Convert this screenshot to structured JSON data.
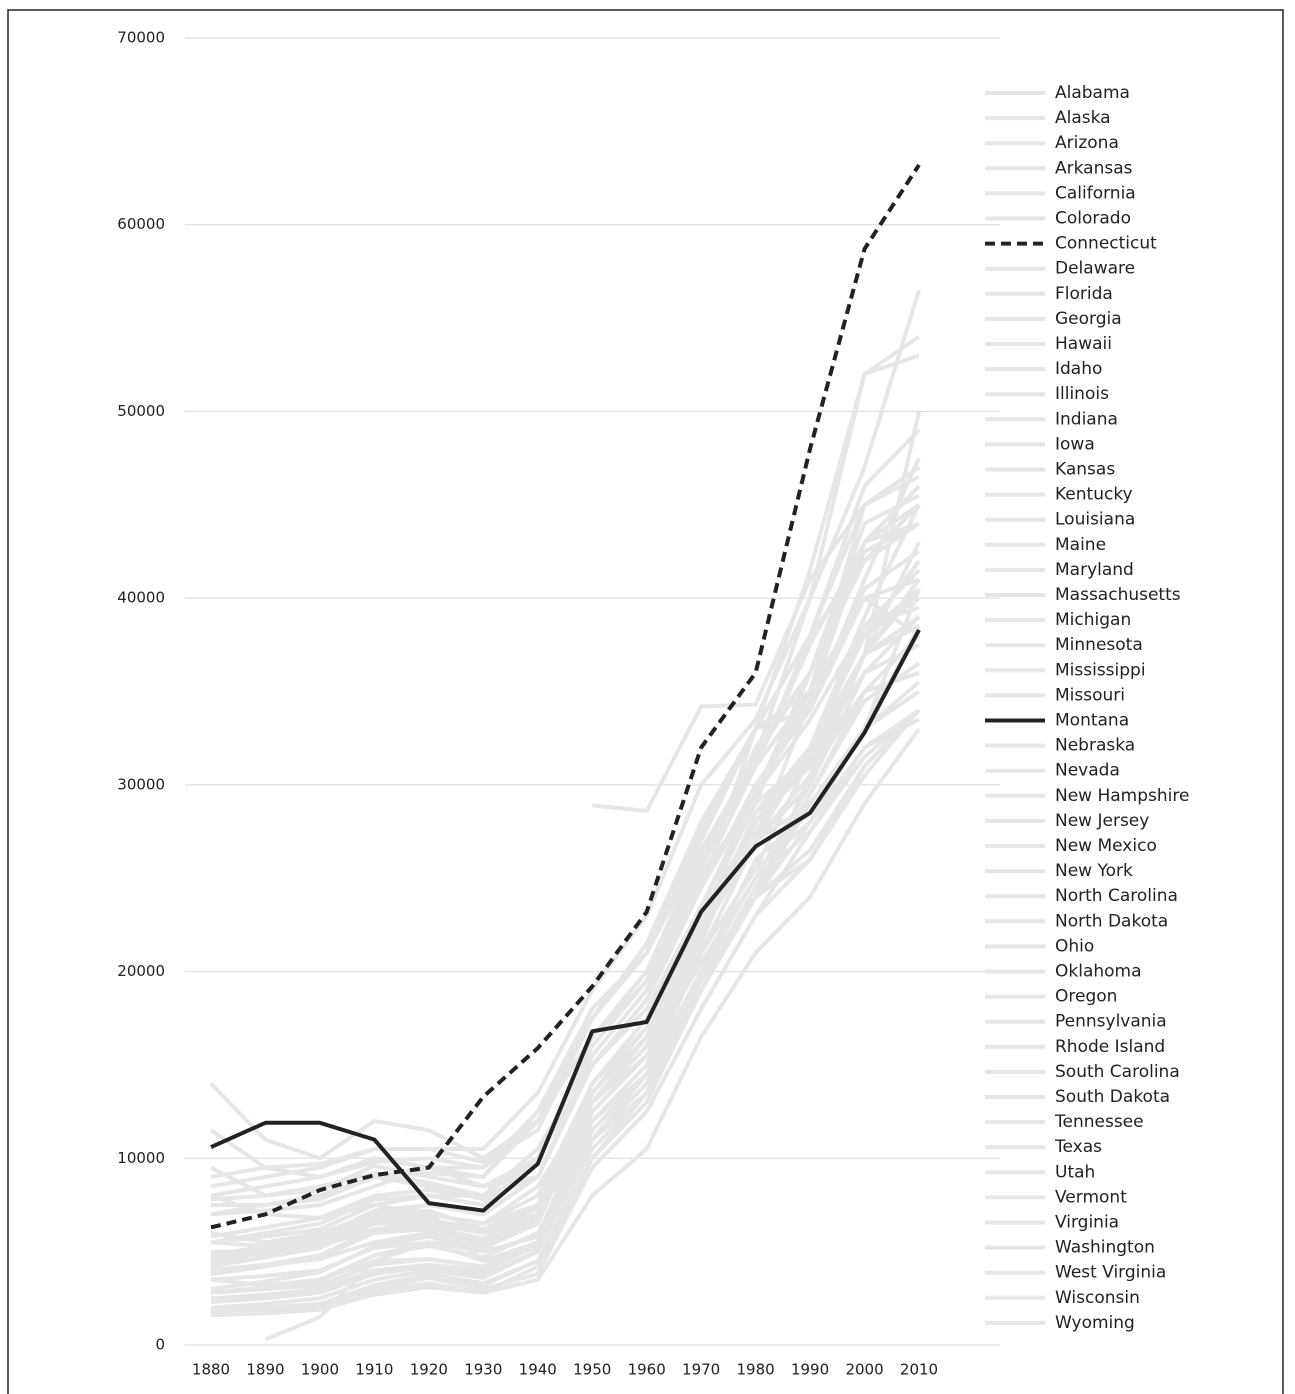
{
  "chart_data": {
    "type": "line",
    "x": [
      1880,
      1890,
      1900,
      1910,
      1920,
      1930,
      1940,
      1950,
      1960,
      1970,
      1980,
      1990,
      2000,
      2010
    ],
    "ylim": [
      0,
      70000
    ],
    "yticks": [
      0,
      10000,
      20000,
      30000,
      40000,
      50000,
      60000,
      70000
    ],
    "grid": true,
    "series": [
      {
        "name": "Alabama",
        "color": "#e6e6e6",
        "values": [
          1900,
          2000,
          2200,
          3200,
          3800,
          3300,
          4500,
          10000,
          13000,
          19000,
          24000,
          29000,
          33000,
          35500
        ]
      },
      {
        "name": "Alaska",
        "color": "#e6e6e6",
        "values": [
          null,
          null,
          null,
          null,
          null,
          null,
          null,
          28900,
          28600,
          34200,
          34300,
          41000,
          45000,
          47000
        ]
      },
      {
        "name": "Arizona",
        "color": "#e6e6e6",
        "values": [
          8000,
          7000,
          6800,
          7500,
          7000,
          6500,
          7500,
          14000,
          17500,
          23000,
          28000,
          31000,
          35000,
          36000
        ]
      },
      {
        "name": "Arkansas",
        "color": "#e6e6e6",
        "values": [
          1700,
          1900,
          2100,
          3000,
          3600,
          3000,
          3800,
          9500,
          12500,
          18000,
          23000,
          26000,
          31000,
          34000
        ]
      },
      {
        "name": "California",
        "color": "#e6e6e6",
        "values": [
          9000,
          9500,
          9700,
          10500,
          10500,
          9800,
          11500,
          17500,
          21000,
          27500,
          33000,
          38000,
          45000,
          47000
        ]
      },
      {
        "name": "Colorado",
        "color": "#e6e6e6",
        "values": [
          9500,
          8000,
          8500,
          9200,
          8700,
          8000,
          9000,
          15500,
          19000,
          25000,
          31000,
          35000,
          45000,
          46500
        ]
      },
      {
        "name": "Connecticut",
        "color": "#222222",
        "dash": true,
        "values": [
          6300,
          7000,
          8300,
          9100,
          9500,
          13300,
          15900,
          19200,
          23200,
          32000,
          36000,
          48000,
          58700,
          63200
        ]
      },
      {
        "name": "Delaware",
        "color": "#e6e6e6",
        "values": [
          7000,
          7200,
          7500,
          8500,
          9500,
          9000,
          12500,
          18000,
          21000,
          26500,
          31000,
          37500,
          43000,
          44000
        ]
      },
      {
        "name": "Florida",
        "color": "#e6e6e6",
        "values": [
          3500,
          3700,
          4000,
          5200,
          5500,
          5000,
          7500,
          13000,
          16000,
          22000,
          27000,
          32000,
          38000,
          40000
        ]
      },
      {
        "name": "Georgia",
        "color": "#e6e6e6",
        "values": [
          2000,
          2200,
          2500,
          3500,
          4000,
          3600,
          5000,
          11000,
          14000,
          20000,
          25000,
          30000,
          36000,
          37500
        ]
      },
      {
        "name": "Hawaii",
        "color": "#e6e6e6",
        "values": [
          null,
          null,
          null,
          null,
          null,
          null,
          null,
          18000,
          21000,
          28000,
          33000,
          38000,
          42000,
          45000
        ]
      },
      {
        "name": "Idaho",
        "color": "#e6e6e6",
        "values": [
          6000,
          5500,
          6000,
          7000,
          6000,
          5500,
          7000,
          12500,
          15500,
          21000,
          25500,
          28000,
          32000,
          34000
        ]
      },
      {
        "name": "Illinois",
        "color": "#e6e6e6",
        "values": [
          5500,
          6000,
          6500,
          7800,
          8000,
          7500,
          10000,
          16500,
          20000,
          26000,
          31500,
          36000,
          42000,
          44000
        ]
      },
      {
        "name": "Indiana",
        "color": "#e6e6e6",
        "values": [
          4000,
          4300,
          4800,
          6000,
          6300,
          5700,
          7500,
          13500,
          17000,
          23000,
          27500,
          32000,
          37000,
          38500
        ]
      },
      {
        "name": "Iowa",
        "color": "#e6e6e6",
        "values": [
          4200,
          4700,
          5200,
          6500,
          6500,
          5200,
          6500,
          13000,
          16000,
          22500,
          28000,
          31500,
          37000,
          41000
        ]
      },
      {
        "name": "Kansas",
        "color": "#e6e6e6",
        "values": [
          3800,
          4200,
          4800,
          6200,
          6400,
          5600,
          6500,
          13500,
          16500,
          22000,
          28000,
          32000,
          38000,
          42000
        ]
      },
      {
        "name": "Kentucky",
        "color": "#e6e6e6",
        "values": [
          2500,
          2700,
          3000,
          4000,
          4300,
          4000,
          5300,
          11000,
          14000,
          19500,
          24000,
          28000,
          33000,
          35000
        ]
      },
      {
        "name": "Louisiana",
        "color": "#e6e6e6",
        "values": [
          2800,
          3000,
          3200,
          4300,
          4600,
          4200,
          5500,
          11500,
          14500,
          20000,
          26000,
          28500,
          33000,
          40500
        ]
      },
      {
        "name": "Maine",
        "color": "#e6e6e6",
        "values": [
          4000,
          4300,
          4600,
          5500,
          6000,
          5500,
          7000,
          11500,
          14500,
          20000,
          24000,
          30500,
          35000,
          38000
        ]
      },
      {
        "name": "Maryland",
        "color": "#e6e6e6",
        "values": [
          5500,
          5800,
          6200,
          7500,
          8000,
          8000,
          10500,
          15500,
          19000,
          26000,
          31000,
          38000,
          46000,
          49000
        ]
      },
      {
        "name": "Massachusetts",
        "color": "#e6e6e6",
        "values": [
          7000,
          7500,
          8000,
          9000,
          9200,
          9000,
          12000,
          16500,
          20000,
          26500,
          31500,
          40000,
          52000,
          54000
        ]
      },
      {
        "name": "Michigan",
        "color": "#e6e6e6",
        "values": [
          4500,
          5000,
          5500,
          7000,
          7500,
          7000,
          9000,
          15000,
          18500,
          24500,
          30000,
          34000,
          40000,
          38000
        ]
      },
      {
        "name": "Minnesota",
        "color": "#e6e6e6",
        "values": [
          4500,
          5000,
          5500,
          7000,
          7000,
          6500,
          8000,
          14000,
          17500,
          23500,
          29500,
          35000,
          43000,
          45000
        ]
      },
      {
        "name": "Mississippi",
        "color": "#e6e6e6",
        "values": [
          1600,
          1700,
          1900,
          2700,
          3100,
          2800,
          3500,
          8000,
          10500,
          16500,
          21000,
          24000,
          29000,
          33000
        ]
      },
      {
        "name": "Missouri",
        "color": "#e6e6e6",
        "values": [
          3800,
          4200,
          4700,
          6000,
          6200,
          5700,
          7500,
          13000,
          16500,
          22500,
          27500,
          31500,
          36000,
          39000
        ]
      },
      {
        "name": "Montana",
        "color": "#222222",
        "values": [
          10600,
          11900,
          11900,
          11000,
          7600,
          7200,
          9700,
          16800,
          17300,
          23200,
          26700,
          28500,
          32800,
          38300
        ]
      },
      {
        "name": "Nebraska",
        "color": "#e6e6e6",
        "values": [
          4500,
          5000,
          5500,
          7000,
          7200,
          6200,
          7000,
          14000,
          17000,
          22000,
          28500,
          32000,
          39000,
          45000
        ]
      },
      {
        "name": "Nevada",
        "color": "#e6e6e6",
        "values": [
          14000,
          11000,
          10000,
          12000,
          11500,
          10000,
          12000,
          17500,
          21000,
          27000,
          33000,
          35000,
          40000,
          41000
        ]
      },
      {
        "name": "New Hampshire",
        "color": "#e6e6e6",
        "values": [
          4800,
          5200,
          5700,
          6500,
          7000,
          6500,
          8500,
          13000,
          16000,
          22500,
          27000,
          34500,
          43000,
          46000
        ]
      },
      {
        "name": "New Jersey",
        "color": "#e6e6e6",
        "values": [
          7000,
          7500,
          8000,
          9000,
          9500,
          9500,
          12500,
          17500,
          21500,
          28000,
          33000,
          41500,
          52000,
          53000
        ]
      },
      {
        "name": "New Mexico",
        "color": "#e6e6e6",
        "values": [
          3500,
          3200,
          3500,
          4500,
          4600,
          4200,
          5500,
          11000,
          14500,
          20000,
          24000,
          26000,
          30500,
          34000
        ]
      },
      {
        "name": "New York",
        "color": "#e6e6e6",
        "values": [
          8500,
          9000,
          9500,
          10500,
          10500,
          10500,
          13500,
          19000,
          23000,
          30000,
          33500,
          40000,
          47000,
          56500
        ]
      },
      {
        "name": "North Carolina",
        "color": "#e6e6e6",
        "values": [
          1700,
          1800,
          2000,
          2900,
          3600,
          3200,
          4500,
          10000,
          13500,
          19000,
          24000,
          29500,
          35000,
          36000
        ]
      },
      {
        "name": "North Dakota",
        "color": "#e6e6e6",
        "values": [
          5000,
          5000,
          5600,
          6800,
          6800,
          4500,
          5500,
          12000,
          14500,
          21000,
          27000,
          30500,
          37000,
          50000
        ]
      },
      {
        "name": "Ohio",
        "color": "#e6e6e6",
        "values": [
          4800,
          5300,
          5800,
          7200,
          7500,
          7000,
          9000,
          15000,
          18500,
          24500,
          29500,
          33500,
          38500,
          39500
        ]
      },
      {
        "name": "Oklahoma",
        "color": "#e6e6e6",
        "values": [
          null,
          300,
          1500,
          4500,
          5500,
          4500,
          5200,
          11500,
          14500,
          21000,
          27000,
          29000,
          33000,
          38500
        ]
      },
      {
        "name": "Oregon",
        "color": "#e6e6e6",
        "values": [
          7500,
          7500,
          7800,
          9000,
          8500,
          7800,
          9000,
          15000,
          18000,
          23500,
          29000,
          31500,
          37000,
          39000
        ]
      },
      {
        "name": "Pennsylvania",
        "color": "#e6e6e6",
        "values": [
          5800,
          6300,
          6800,
          8000,
          8300,
          8000,
          10000,
          15000,
          18500,
          24500,
          29500,
          34500,
          40500,
          42500
        ]
      },
      {
        "name": "Rhode Island",
        "color": "#e6e6e6",
        "values": [
          8000,
          8500,
          9000,
          9800,
          10000,
          9500,
          12000,
          16500,
          19500,
          25000,
          29500,
          36000,
          42500,
          44000
        ]
      },
      {
        "name": "South Carolina",
        "color": "#e6e6e6",
        "values": [
          1600,
          1700,
          1900,
          2800,
          3300,
          2800,
          4200,
          9500,
          12500,
          18000,
          23000,
          27500,
          32000,
          33500
        ]
      },
      {
        "name": "South Dakota",
        "color": "#e6e6e6",
        "values": [
          4800,
          4900,
          5400,
          6800,
          7000,
          5000,
          5800,
          12500,
          15500,
          21000,
          27000,
          30000,
          37000,
          43000
        ]
      },
      {
        "name": "Tennessee",
        "color": "#e6e6e6",
        "values": [
          2300,
          2500,
          2800,
          3800,
          4200,
          3800,
          5000,
          10500,
          13500,
          19500,
          24500,
          29500,
          34500,
          36500
        ]
      },
      {
        "name": "Texas",
        "color": "#e6e6e6",
        "values": [
          3000,
          3400,
          3900,
          5300,
          5800,
          5200,
          6800,
          12500,
          15500,
          21500,
          28500,
          31000,
          37000,
          40500
        ]
      },
      {
        "name": "Utah",
        "color": "#e6e6e6",
        "values": [
          5500,
          5300,
          5700,
          6800,
          6500,
          6000,
          7300,
          13000,
          15500,
          20500,
          25000,
          27500,
          31500,
          34000
        ]
      },
      {
        "name": "Vermont",
        "color": "#e6e6e6",
        "values": [
          4600,
          4900,
          5300,
          6200,
          6500,
          6000,
          7500,
          12000,
          15000,
          21000,
          25500,
          31500,
          38500,
          41500
        ]
      },
      {
        "name": "Virginia",
        "color": "#e6e6e6",
        "values": [
          2800,
          3100,
          3500,
          4800,
          5500,
          5300,
          7500,
          13000,
          16500,
          23000,
          29000,
          36000,
          43000,
          46000
        ]
      },
      {
        "name": "Washington",
        "color": "#e6e6e6",
        "values": [
          7800,
          8000,
          8300,
          9600,
          9000,
          8500,
          10000,
          16000,
          19500,
          25500,
          32000,
          36000,
          44000,
          45500
        ]
      },
      {
        "name": "West Virginia",
        "color": "#e6e6e6",
        "values": [
          2800,
          3000,
          3400,
          4800,
          5300,
          4700,
          6000,
          11000,
          13500,
          19000,
          24000,
          26500,
          31000,
          34000
        ]
      },
      {
        "name": "Wisconsin",
        "color": "#e6e6e6",
        "values": [
          4400,
          4800,
          5300,
          6600,
          6700,
          6200,
          7500,
          13500,
          17000,
          22500,
          28000,
          32000,
          38000,
          40500
        ]
      },
      {
        "name": "Wyoming",
        "color": "#e6e6e6",
        "values": [
          11500,
          9500,
          9000,
          10000,
          9500,
          8500,
          9000,
          15000,
          18500,
          24500,
          33000,
          34000,
          41000,
          47500
        ]
      }
    ]
  }
}
